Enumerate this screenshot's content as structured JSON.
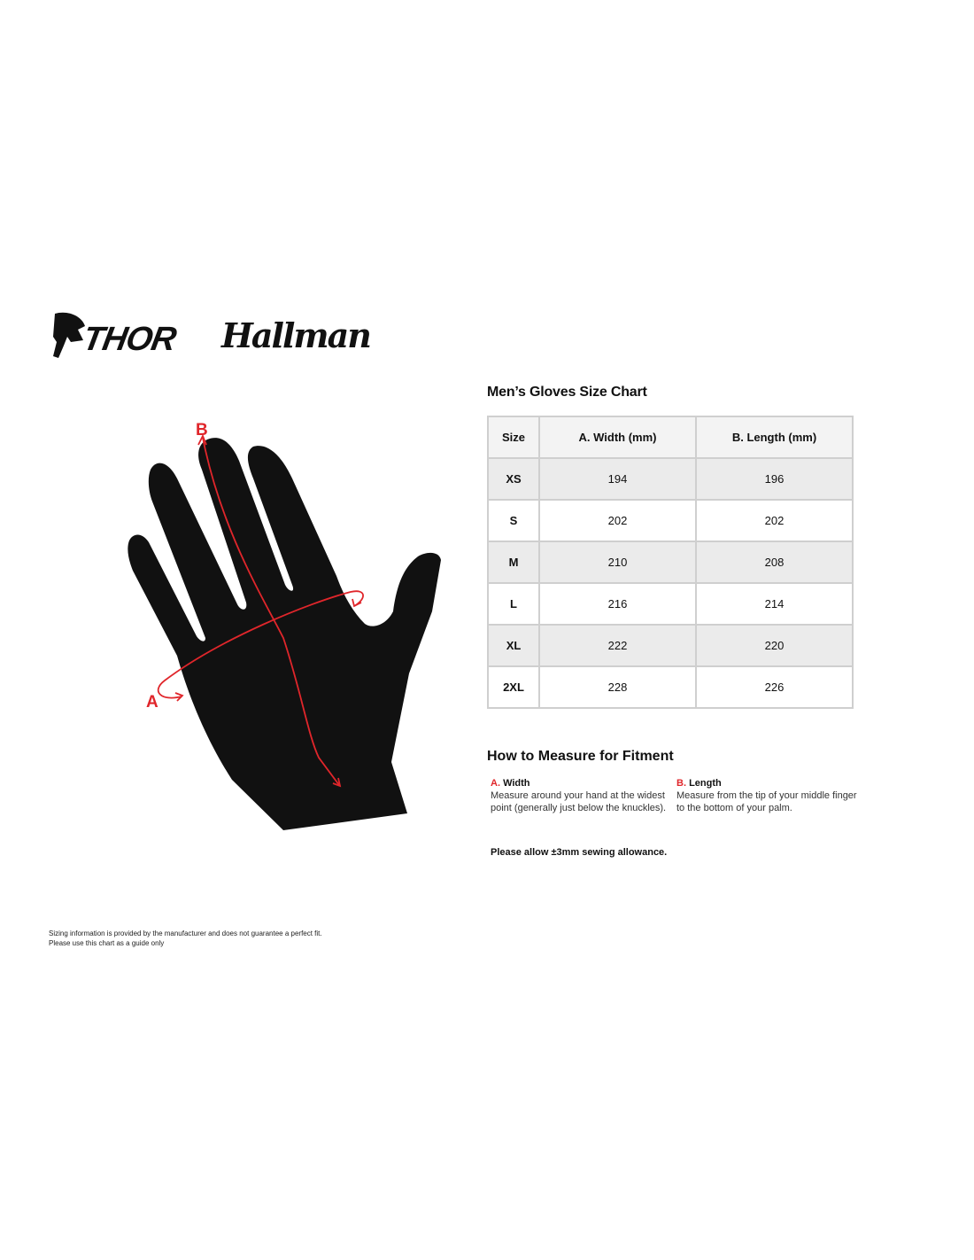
{
  "logos": {
    "thor": "THOR",
    "hallman": "Hallman"
  },
  "diagram": {
    "label_a": "A",
    "label_b": "B",
    "accent_color": "#e0262b"
  },
  "chart": {
    "title": "Men’s Gloves Size Chart",
    "headers": [
      "Size",
      "A. Width (mm)",
      "B. Length (mm)"
    ],
    "rows": [
      [
        "XS",
        "194",
        "196"
      ],
      [
        "S",
        "202",
        "202"
      ],
      [
        "M",
        "210",
        "208"
      ],
      [
        "L",
        "216",
        "214"
      ],
      [
        "XL",
        "222",
        "220"
      ],
      [
        "2XL",
        "228",
        "226"
      ]
    ]
  },
  "measure": {
    "title": "How to Measure for Fitment",
    "width": {
      "prefix": "A.",
      "label": "Width",
      "line1": "Measure around your hand at the widest",
      "line2": "point (generally just below the knuckles)."
    },
    "length": {
      "prefix": "B.",
      "label": "Length",
      "line1": "Measure from the tip of your middle finger",
      "line2": "to the bottom of your palm."
    },
    "allowance": "Please allow ±3mm sewing allowance."
  },
  "disclaimer": {
    "line1": "Sizing information is provided by the manufacturer and does not guarantee a perfect fit.",
    "line2": "Please use this chart as a guide only"
  }
}
